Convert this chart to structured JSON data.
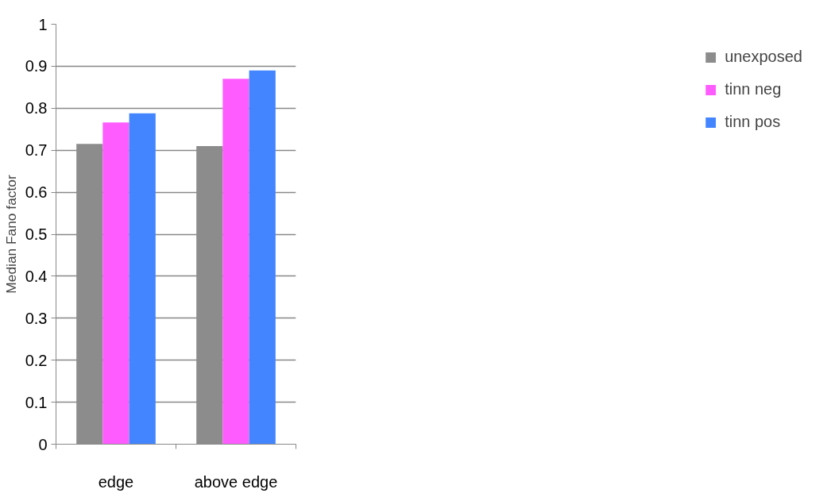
{
  "chart_data": {
    "type": "bar",
    "ylabel": "Median Fano factor",
    "categories": [
      "edge",
      "above edge"
    ],
    "series": [
      {
        "name": "unexposed",
        "color": "#8c8c8c",
        "values": [
          0.715,
          0.71
        ]
      },
      {
        "name": "tinn neg",
        "color": "#ff5cff",
        "values": [
          0.766,
          0.87
        ]
      },
      {
        "name": "tinn pos",
        "color": "#4285ff",
        "values": [
          0.788,
          0.89
        ]
      }
    ],
    "ylim": [
      0,
      1
    ],
    "yticks": [
      0,
      0.1,
      0.2,
      0.3,
      0.4,
      0.5,
      0.6,
      0.7,
      0.8,
      0.9,
      1
    ],
    "grid": "y",
    "legend": "right"
  }
}
